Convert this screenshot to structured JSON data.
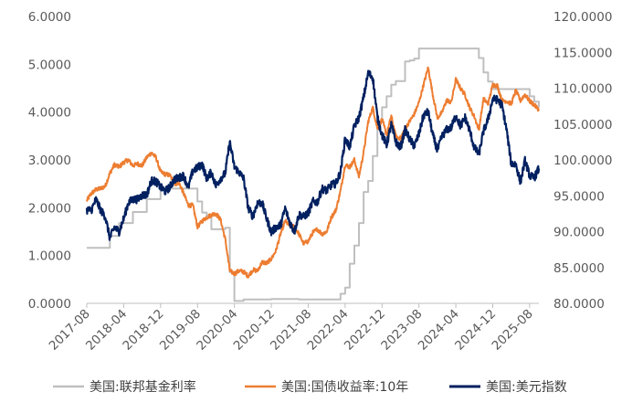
{
  "chart_data": {
    "type": "line",
    "title": "",
    "xlabel": "",
    "y_left": {
      "ylim": [
        0,
        6
      ],
      "ticks": [
        "0.0000",
        "1.0000",
        "2.0000",
        "3.0000",
        "4.0000",
        "5.0000",
        "6.0000"
      ]
    },
    "y_right": {
      "ylim": [
        80,
        120
      ],
      "ticks": [
        "80.0000",
        "85.0000",
        "90.0000",
        "95.0000",
        "100.0000",
        "105.0000",
        "110.0000",
        "115.0000",
        "120.0000"
      ]
    },
    "x_ticks": [
      "2017-08",
      "2018-04",
      "2018-12",
      "2019-08",
      "2020-04",
      "2020-12",
      "2021-08",
      "2022-04",
      "2022-12",
      "2023-08",
      "2024-04",
      "2024-12",
      "2025-08"
    ],
    "x_range": [
      "2017-08",
      "2025-10"
    ],
    "grid": false,
    "legend": "bottom",
    "series": [
      {
        "name": "美国:联邦基金利率",
        "axis": "left",
        "color": "#BFBFBF",
        "points": [
          [
            "2017-08",
            1.16
          ],
          [
            "2017-12",
            1.16
          ],
          [
            "2018-01",
            1.41
          ],
          [
            "2018-03",
            1.68
          ],
          [
            "2018-06",
            1.91
          ],
          [
            "2018-09",
            2.18
          ],
          [
            "2018-12",
            2.4
          ],
          [
            "2019-07",
            2.4
          ],
          [
            "2019-08",
            2.13
          ],
          [
            "2019-09",
            1.9
          ],
          [
            "2019-10",
            1.83
          ],
          [
            "2019-11",
            1.55
          ],
          [
            "2020-02",
            1.58
          ],
          [
            "2020-03",
            0.65
          ],
          [
            "2020-04",
            0.05
          ],
          [
            "2020-06",
            0.08
          ],
          [
            "2020-12",
            0.09
          ],
          [
            "2021-06",
            0.08
          ],
          [
            "2021-12",
            0.08
          ],
          [
            "2022-03",
            0.2
          ],
          [
            "2022-04",
            0.33
          ],
          [
            "2022-05",
            0.83
          ],
          [
            "2022-06",
            1.21
          ],
          [
            "2022-07",
            1.68
          ],
          [
            "2022-08",
            2.33
          ],
          [
            "2022-09",
            2.56
          ],
          [
            "2022-10",
            3.08
          ],
          [
            "2022-11",
            3.78
          ],
          [
            "2022-12",
            4.1
          ],
          [
            "2023-01",
            4.33
          ],
          [
            "2023-02",
            4.57
          ],
          [
            "2023-03",
            4.65
          ],
          [
            "2023-05",
            5.06
          ],
          [
            "2023-06",
            5.08
          ],
          [
            "2023-07",
            5.12
          ],
          [
            "2023-08",
            5.33
          ],
          [
            "2024-08",
            5.33
          ],
          [
            "2024-09",
            5.13
          ],
          [
            "2024-10",
            4.83
          ],
          [
            "2024-11",
            4.64
          ],
          [
            "2024-12",
            4.48
          ],
          [
            "2025-08",
            4.33
          ],
          [
            "2025-09",
            4.22
          ],
          [
            "2025-10",
            4.1
          ]
        ]
      },
      {
        "name": "美国:国债收益率:10年",
        "axis": "left",
        "color": "#ED7D31",
        "points": [
          [
            "2017-08",
            2.15
          ],
          [
            "2017-09",
            2.3
          ],
          [
            "2017-10",
            2.38
          ],
          [
            "2017-11",
            2.4
          ],
          [
            "2017-12",
            2.45
          ],
          [
            "2018-01",
            2.72
          ],
          [
            "2018-02",
            2.9
          ],
          [
            "2018-03",
            2.85
          ],
          [
            "2018-04",
            2.95
          ],
          [
            "2018-05",
            3.0
          ],
          [
            "2018-06",
            2.88
          ],
          [
            "2018-07",
            2.92
          ],
          [
            "2018-08",
            2.88
          ],
          [
            "2018-09",
            3.05
          ],
          [
            "2018-10",
            3.15
          ],
          [
            "2018-11",
            3.05
          ],
          [
            "2018-12",
            2.75
          ],
          [
            "2019-01",
            2.7
          ],
          [
            "2019-02",
            2.68
          ],
          [
            "2019-03",
            2.5
          ],
          [
            "2019-04",
            2.52
          ],
          [
            "2019-05",
            2.3
          ],
          [
            "2019-06",
            2.05
          ],
          [
            "2019-07",
            2.05
          ],
          [
            "2019-08",
            1.6
          ],
          [
            "2019-09",
            1.72
          ],
          [
            "2019-10",
            1.8
          ],
          [
            "2019-11",
            1.85
          ],
          [
            "2019-12",
            1.88
          ],
          [
            "2020-01",
            1.75
          ],
          [
            "2020-02",
            1.35
          ],
          [
            "2020-03",
            0.68
          ],
          [
            "2020-04",
            0.62
          ],
          [
            "2020-05",
            0.68
          ],
          [
            "2020-06",
            0.66
          ],
          [
            "2020-07",
            0.57
          ],
          [
            "2020-08",
            0.7
          ],
          [
            "2020-09",
            0.68
          ],
          [
            "2020-10",
            0.86
          ],
          [
            "2020-11",
            0.84
          ],
          [
            "2020-12",
            0.93
          ],
          [
            "2021-01",
            1.1
          ],
          [
            "2021-02",
            1.45
          ],
          [
            "2021-03",
            1.72
          ],
          [
            "2021-04",
            1.62
          ],
          [
            "2021-05",
            1.6
          ],
          [
            "2021-06",
            1.45
          ],
          [
            "2021-07",
            1.25
          ],
          [
            "2021-08",
            1.3
          ],
          [
            "2021-09",
            1.48
          ],
          [
            "2021-10",
            1.55
          ],
          [
            "2021-11",
            1.45
          ],
          [
            "2021-12",
            1.5
          ],
          [
            "2022-01",
            1.8
          ],
          [
            "2022-02",
            1.95
          ],
          [
            "2022-03",
            2.35
          ],
          [
            "2022-04",
            2.9
          ],
          [
            "2022-05",
            2.85
          ],
          [
            "2022-06",
            3.0
          ],
          [
            "2022-07",
            2.65
          ],
          [
            "2022-08",
            3.15
          ],
          [
            "2022-09",
            3.8
          ],
          [
            "2022-10",
            4.1
          ],
          [
            "2022-11",
            3.65
          ],
          [
            "2022-12",
            3.85
          ],
          [
            "2023-01",
            3.52
          ],
          [
            "2023-02",
            3.92
          ],
          [
            "2023-03",
            3.48
          ],
          [
            "2023-04",
            3.45
          ],
          [
            "2023-05",
            3.65
          ],
          [
            "2023-06",
            3.81
          ],
          [
            "2023-07",
            3.96
          ],
          [
            "2023-08",
            4.2
          ],
          [
            "2023-09",
            4.57
          ],
          [
            "2023-10",
            4.93
          ],
          [
            "2023-11",
            4.37
          ],
          [
            "2023-12",
            3.88
          ],
          [
            "2024-01",
            3.99
          ],
          [
            "2024-02",
            4.25
          ],
          [
            "2024-03",
            4.2
          ],
          [
            "2024-04",
            4.68
          ],
          [
            "2024-05",
            4.5
          ],
          [
            "2024-06",
            4.36
          ],
          [
            "2024-07",
            4.09
          ],
          [
            "2024-08",
            3.91
          ],
          [
            "2024-09",
            3.63
          ],
          [
            "2024-10",
            4.28
          ],
          [
            "2024-11",
            4.17
          ],
          [
            "2024-12",
            4.57
          ],
          [
            "2025-01",
            4.55
          ],
          [
            "2025-02",
            4.24
          ],
          [
            "2025-03",
            4.23
          ],
          [
            "2025-04",
            4.17
          ],
          [
            "2025-05",
            4.45
          ],
          [
            "2025-06",
            4.24
          ],
          [
            "2025-07",
            4.37
          ],
          [
            "2025-08",
            4.23
          ],
          [
            "2025-09",
            4.15
          ],
          [
            "2025-10",
            4.05
          ]
        ]
      },
      {
        "name": "美国:美元指数",
        "axis": "right",
        "color": "#002060",
        "points": [
          [
            "2017-08",
            93.0
          ],
          [
            "2017-09",
            93.0
          ],
          [
            "2017-10",
            94.5
          ],
          [
            "2017-11",
            93.0
          ],
          [
            "2017-12",
            92.1
          ],
          [
            "2018-01",
            89.1
          ],
          [
            "2018-02",
            90.6
          ],
          [
            "2018-03",
            90.0
          ],
          [
            "2018-04",
            91.8
          ],
          [
            "2018-05",
            94.0
          ],
          [
            "2018-06",
            94.5
          ],
          [
            "2018-07",
            94.5
          ],
          [
            "2018-08",
            95.1
          ],
          [
            "2018-09",
            95.1
          ],
          [
            "2018-10",
            97.1
          ],
          [
            "2018-11",
            97.0
          ],
          [
            "2018-12",
            96.2
          ],
          [
            "2019-01",
            95.6
          ],
          [
            "2019-02",
            96.2
          ],
          [
            "2019-03",
            97.3
          ],
          [
            "2019-04",
            97.5
          ],
          [
            "2019-05",
            97.8
          ],
          [
            "2019-06",
            96.1
          ],
          [
            "2019-07",
            98.5
          ],
          [
            "2019-08",
            98.9
          ],
          [
            "2019-09",
            99.4
          ],
          [
            "2019-10",
            97.4
          ],
          [
            "2019-11",
            98.3
          ],
          [
            "2019-12",
            96.4
          ],
          [
            "2020-01",
            97.4
          ],
          [
            "2020-02",
            98.1
          ],
          [
            "2020-03",
            102.5
          ],
          [
            "2020-04",
            99.0
          ],
          [
            "2020-05",
            98.3
          ],
          [
            "2020-06",
            97.4
          ],
          [
            "2020-07",
            93.3
          ],
          [
            "2020-08",
            92.1
          ],
          [
            "2020-09",
            94.0
          ],
          [
            "2020-10",
            94.0
          ],
          [
            "2020-11",
            91.8
          ],
          [
            "2020-12",
            89.9
          ],
          [
            "2021-01",
            90.6
          ],
          [
            "2021-02",
            90.9
          ],
          [
            "2021-03",
            93.2
          ],
          [
            "2021-04",
            91.3
          ],
          [
            "2021-05",
            90.0
          ],
          [
            "2021-06",
            92.4
          ],
          [
            "2021-07",
            92.1
          ],
          [
            "2021-08",
            92.6
          ],
          [
            "2021-09",
            94.2
          ],
          [
            "2021-10",
            94.1
          ],
          [
            "2021-11",
            96.0
          ],
          [
            "2021-12",
            95.7
          ],
          [
            "2022-01",
            96.5
          ],
          [
            "2022-02",
            96.7
          ],
          [
            "2022-03",
            98.3
          ],
          [
            "2022-04",
            102.9
          ],
          [
            "2022-05",
            101.8
          ],
          [
            "2022-06",
            104.7
          ],
          [
            "2022-07",
            105.9
          ],
          [
            "2022-08",
            108.7
          ],
          [
            "2022-09",
            112.1
          ],
          [
            "2022-10",
            111.5
          ],
          [
            "2022-11",
            105.9
          ],
          [
            "2022-12",
            103.5
          ],
          [
            "2023-01",
            102.1
          ],
          [
            "2023-02",
            104.9
          ],
          [
            "2023-03",
            102.5
          ],
          [
            "2023-04",
            101.7
          ],
          [
            "2023-05",
            104.2
          ],
          [
            "2023-06",
            102.9
          ],
          [
            "2023-07",
            101.9
          ],
          [
            "2023-08",
            103.6
          ],
          [
            "2023-09",
            106.2
          ],
          [
            "2023-10",
            106.7
          ],
          [
            "2023-11",
            103.5
          ],
          [
            "2023-12",
            101.3
          ],
          [
            "2024-01",
            103.3
          ],
          [
            "2024-02",
            104.2
          ],
          [
            "2024-03",
            104.5
          ],
          [
            "2024-04",
            106.2
          ],
          [
            "2024-05",
            104.7
          ],
          [
            "2024-06",
            105.9
          ],
          [
            "2024-07",
            104.1
          ],
          [
            "2024-08",
            101.7
          ],
          [
            "2024-09",
            100.8
          ],
          [
            "2024-10",
            104.0
          ],
          [
            "2024-11",
            105.7
          ],
          [
            "2024-12",
            108.5
          ],
          [
            "2025-01",
            108.4
          ],
          [
            "2025-02",
            107.6
          ],
          [
            "2025-03",
            104.2
          ],
          [
            "2025-04",
            99.5
          ],
          [
            "2025-05",
            99.4
          ],
          [
            "2025-06",
            96.9
          ],
          [
            "2025-07",
            99.9
          ],
          [
            "2025-08",
            97.8
          ],
          [
            "2025-09",
            97.5
          ],
          [
            "2025-10",
            98.8
          ]
        ]
      }
    ]
  }
}
